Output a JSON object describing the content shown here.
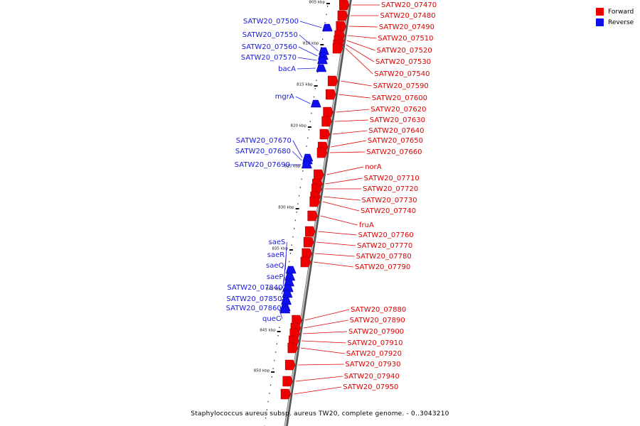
{
  "colors": {
    "forward": "#ee0000",
    "reverse": "#1010ee",
    "backbone": "#8a8a8a",
    "label_forward": "#dd0000",
    "label_reverse": "#1a1ad8"
  },
  "legend": [
    {
      "label": "Forward",
      "color": "#ee0000"
    },
    {
      "label": "Reverse",
      "color": "#1010ee"
    }
  ],
  "caption": "Staphylococcus aureus subsp. aureus TW20, complete genome. - 0..3043210",
  "scale_ticks": [
    "805 kbp",
    "810 kbp",
    "815 kbp",
    "820 kbp",
    "825 kbp",
    "830 kbp",
    "835 kbp",
    "840 kbp",
    "845 kbp",
    "850 kbp"
  ],
  "forward_genes": [
    "SATW20_07470",
    "SATW20_07480",
    "SATW20_07490",
    "SATW20_07510",
    "SATW20_07520",
    "SATW20_07530",
    "SATW20_07540",
    "SATW20_07590",
    "SATW20_07600",
    "SATW20_07620",
    "SATW20_07630",
    "SATW20_07640",
    "SATW20_07650",
    "SATW20_07660",
    "norA",
    "SATW20_07710",
    "SATW20_07720",
    "SATW20_07730",
    "SATW20_07740",
    "fruA",
    "SATW20_07760",
    "SATW20_07770",
    "SATW20_07780",
    "SATW20_07790",
    "SATW20_07880",
    "SATW20_07890",
    "SATW20_07900",
    "SATW20_07910",
    "SATW20_07920",
    "SATW20_07930",
    "SATW20_07940",
    "SATW20_07950"
  ],
  "reverse_genes": [
    "SATW20_07500",
    "SATW20_07550",
    "SATW20_07560",
    "SATW20_07570",
    "bacA",
    "mgrA",
    "SATW20_07670",
    "SATW20_07680",
    "SATW20_07690",
    "saeS",
    "saeR",
    "saeQ",
    "saeP",
    "SATW20_07840",
    "SATW20_07850",
    "SATW20_07860",
    "queC"
  ]
}
